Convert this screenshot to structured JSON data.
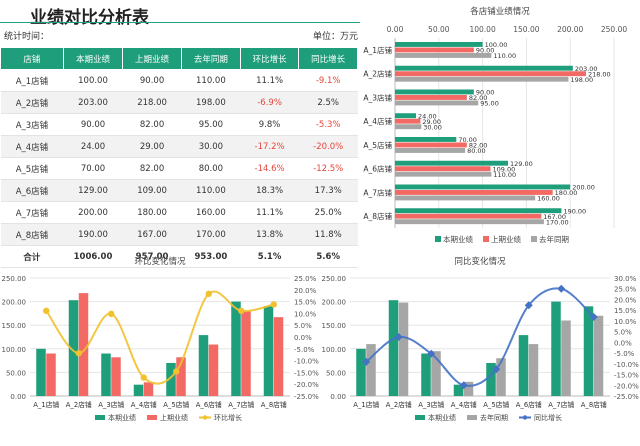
{
  "header": {
    "title": "业绩对比分析表",
    "stat_time_label": "统计时间：",
    "unit_label": "单位：万元"
  },
  "table": {
    "columns": [
      "店铺",
      "本期业绩",
      "上期业绩",
      "去年同期",
      "环比增长",
      "同比增长"
    ],
    "rows": [
      [
        "A_1店铺",
        "100.00",
        "90.00",
        "110.00",
        "11.1%",
        "-9.1%"
      ],
      [
        "A_2店铺",
        "203.00",
        "218.00",
        "198.00",
        "-6.9%",
        "2.5%"
      ],
      [
        "A_3店铺",
        "90.00",
        "82.00",
        "95.00",
        "9.8%",
        "-5.3%"
      ],
      [
        "A_4店铺",
        "24.00",
        "29.00",
        "30.00",
        "-17.2%",
        "-20.0%"
      ],
      [
        "A_5店铺",
        "70.00",
        "82.00",
        "80.00",
        "-14.6%",
        "-12.5%"
      ],
      [
        "A_6店铺",
        "129.00",
        "109.00",
        "110.00",
        "18.3%",
        "17.3%"
      ],
      [
        "A_7店铺",
        "200.00",
        "180.00",
        "160.00",
        "11.1%",
        "25.0%"
      ],
      [
        "A_8店铺",
        "190.00",
        "167.00",
        "170.00",
        "13.8%",
        "11.8%"
      ]
    ],
    "total": [
      "合计",
      "1006.00",
      "957.00",
      "953.00",
      "5.1%",
      "5.6%"
    ]
  },
  "colors": {
    "current": "#1e9e7b",
    "previous": "#f26a63",
    "last_year": "#a6a6a6",
    "mom_line": "#f2c12e",
    "yoy_line": "#4472c4",
    "negative_text": "#e8443a"
  },
  "chart_data": [
    {
      "type": "bar",
      "orientation": "horizontal",
      "title": "各店铺业绩情况",
      "categories": [
        "A_1店铺",
        "A_2店铺",
        "A_3店铺",
        "A_4店铺",
        "A_5店铺",
        "A_6店铺",
        "A_7店铺",
        "A_8店铺"
      ],
      "series": [
        {
          "name": "本期业绩",
          "values": [
            100,
            203,
            90,
            24,
            70,
            129,
            200,
            190
          ]
        },
        {
          "name": "上期业绩",
          "values": [
            90,
            218,
            82,
            29,
            82,
            109,
            180,
            167
          ]
        },
        {
          "name": "去年同期",
          "values": [
            110,
            198,
            95,
            30,
            80,
            110,
            160,
            170
          ]
        }
      ],
      "xlim": [
        0,
        250
      ],
      "xticks": [
        "0.00",
        "50.00",
        "100.00",
        "150.00",
        "200.00",
        "250.00"
      ],
      "legend": "bottom"
    },
    {
      "type": "bar",
      "title": "环比变化情况",
      "categories": [
        "A_1店铺",
        "A_2店铺",
        "A_3店铺",
        "A_4店铺",
        "A_5店铺",
        "A_6店铺",
        "A_7店铺",
        "A_8店铺"
      ],
      "series": [
        {
          "name": "本期业绩",
          "values": [
            100,
            203,
            90,
            24,
            70,
            129,
            200,
            190
          ]
        },
        {
          "name": "上期业绩",
          "values": [
            90,
            218,
            82,
            29,
            82,
            109,
            180,
            167
          ]
        },
        {
          "name": "环比增长",
          "type": "line",
          "axis": "right",
          "values": [
            11.1,
            -6.9,
            9.8,
            -17.2,
            -14.6,
            18.3,
            11.1,
            13.8
          ]
        }
      ],
      "ylim": [
        0,
        250
      ],
      "yticks": [
        "0.00",
        "50.00",
        "100.00",
        "150.00",
        "200.00",
        "250.00"
      ],
      "y2lim": [
        -25,
        25
      ],
      "y2ticks": [
        "25.0%",
        "20.0%",
        "15.0%",
        "10.0%",
        "5.0%",
        "0.0%",
        "-5.0%",
        "-10.0%",
        "-15.0%",
        "-20.0%",
        "-25.0%"
      ],
      "legend": "bottom"
    },
    {
      "type": "bar",
      "title": "同比变化情况",
      "categories": [
        "A_1店铺",
        "A_2店铺",
        "A_3店铺",
        "A_4店铺",
        "A_5店铺",
        "A_6店铺",
        "A_7店铺",
        "A_8店铺"
      ],
      "series": [
        {
          "name": "本期业绩",
          "values": [
            100,
            203,
            90,
            24,
            70,
            129,
            200,
            190
          ]
        },
        {
          "name": "去年同期",
          "values": [
            110,
            198,
            95,
            30,
            80,
            110,
            160,
            170
          ]
        },
        {
          "name": "同比增长",
          "type": "line",
          "axis": "right",
          "values": [
            -9.1,
            2.5,
            -5.3,
            -20.0,
            -12.5,
            17.3,
            25.0,
            11.8
          ]
        }
      ],
      "ylim": [
        0,
        250
      ],
      "yticks": [
        "0.00",
        "50.00",
        "100.00",
        "150.00",
        "200.00",
        "250.00"
      ],
      "y2lim": [
        -25,
        30
      ],
      "y2ticks": [
        "30.0%",
        "25.0%",
        "20.0%",
        "15.0%",
        "10.0%",
        "5.0%",
        "0.0%",
        "-5.0%",
        "-10.0%",
        "-15.0%",
        "-20.0%",
        "-25.0%"
      ],
      "legend": "bottom"
    }
  ]
}
